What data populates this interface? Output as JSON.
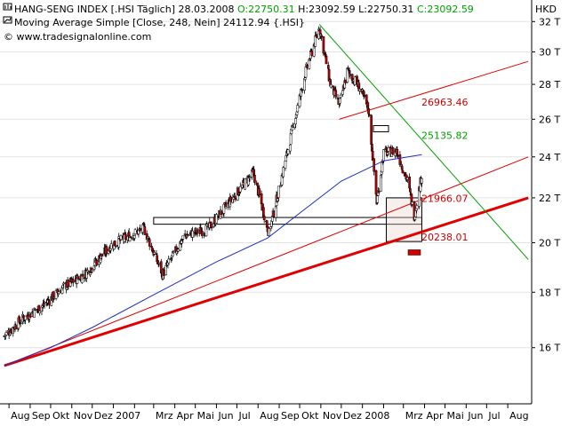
{
  "header": {
    "line1_prefix": "HANG-SENG INDEX [.HSI  Täglich] 28.03.2008 ",
    "open": "O:22750.31",
    "high": "H:23092.59",
    "low": "L:22750.31",
    "close": "C:23092.59",
    "line2_prefix": "Moving Average Simple [Close, 248, Nein] ",
    "ma_value": "24112.94",
    "line2_suffix": " {.HSI}",
    "line3": "© www.tradesignalonline.com",
    "currency": "HKD"
  },
  "colors": {
    "candle_up": "#ffffff",
    "candle_down": "#c00000",
    "moving_average": "#1f2fbf",
    "trend_red": "#e00000",
    "trend_green": "#00a000",
    "level_red": "#d00000",
    "level_green": "#00a000"
  },
  "chart_data": {
    "type": "candlestick",
    "title": "HANG-SENG INDEX [.HSI  Täglich] 28.03.2008",
    "ylabel": "HKD",
    "y_scale": "log",
    "y_range": [
      14200,
      33500
    ],
    "y_ticks": [
      {
        "label": "32 T",
        "value": 32000
      },
      {
        "label": "30 T",
        "value": 30000
      },
      {
        "label": "28 T",
        "value": 28000
      },
      {
        "label": "26 T",
        "value": 26000
      },
      {
        "label": "24 T",
        "value": 24000
      },
      {
        "label": "22 T",
        "value": 22000
      },
      {
        "label": "20 T",
        "value": 20000
      },
      {
        "label": "18 T",
        "value": 18000
      },
      {
        "label": "16 T",
        "value": 16000
      }
    ],
    "x_ticks": [
      "Aug",
      "Sep",
      "Okt",
      "Nov",
      "Dez 2007",
      "Mrz",
      "Apr",
      "Mai",
      "Jun",
      "Jul",
      "Aug",
      "Sep",
      "Okt",
      "Nov",
      "Dez 2008",
      "Mrz",
      "Apr",
      "Mai",
      "Jun",
      "Jul",
      "Aug"
    ],
    "price_path": [
      [
        "2006-07-25",
        16400
      ],
      [
        "2006-08-20",
        17000
      ],
      [
        "2006-09-20",
        17500
      ],
      [
        "2006-10-20",
        18200
      ],
      [
        "2006-11-20",
        18700
      ],
      [
        "2006-12-29",
        19900
      ],
      [
        "2007-02-15",
        20600
      ],
      [
        "2007-03-14",
        18700
      ],
      [
        "2007-04-15",
        20300
      ],
      [
        "2007-05-20",
        20600
      ],
      [
        "2007-06-20",
        21800
      ],
      [
        "2007-07-25",
        23200
      ],
      [
        "2007-08-17",
        20400
      ],
      [
        "2007-09-10",
        23800
      ],
      [
        "2007-10-10",
        28800
      ],
      [
        "2007-10-30",
        31600
      ],
      [
        "2007-11-15",
        28000
      ],
      [
        "2007-11-28",
        26800
      ],
      [
        "2007-12-10",
        28800
      ],
      [
        "2007-12-28",
        27800
      ],
      [
        "2008-01-10",
        26500
      ],
      [
        "2008-01-22",
        21800
      ],
      [
        "2008-02-01",
        24200
      ],
      [
        "2008-02-20",
        24300
      ],
      [
        "2008-03-07",
        22800
      ],
      [
        "2008-03-17",
        21200
      ],
      [
        "2008-03-28",
        23092.59
      ]
    ],
    "moving_average": {
      "name": "Moving Average Simple [Close, 248, Nein]",
      "last": 24112.94,
      "path": [
        [
          "2006-07-25",
          15400
        ],
        [
          "2006-10-01",
          16000
        ],
        [
          "2006-12-01",
          16700
        ],
        [
          "2007-03-01",
          17900
        ],
        [
          "2007-06-01",
          19200
        ],
        [
          "2007-08-15",
          20200
        ],
        [
          "2007-10-01",
          21300
        ],
        [
          "2007-12-01",
          22800
        ],
        [
          "2008-02-01",
          23800
        ],
        [
          "2008-03-28",
          24112.94
        ]
      ]
    },
    "levels": [
      {
        "label": "26963.46",
        "value": 26963.46,
        "color": "red"
      },
      {
        "label": "25135.82",
        "value": 25135.82,
        "color": "green"
      },
      {
        "label": "21966.07",
        "value": 21966.07,
        "color": "red"
      },
      {
        "label": "20238.01",
        "value": 20238.01,
        "color": "red"
      }
    ],
    "trendlines": [
      {
        "color": "red",
        "width": 3,
        "from": [
          "2006-07-25",
          15400
        ],
        "to": [
          "2008-08-31",
          22000
        ]
      },
      {
        "color": "red",
        "width": 1,
        "from": [
          "2006-07-25",
          15400
        ],
        "to": [
          "2008-08-31",
          24000
        ]
      },
      {
        "color": "red",
        "width": 1,
        "from": [
          "2007-11-28",
          26000
        ],
        "to": [
          "2008-08-31",
          29400
        ]
      },
      {
        "color": "green",
        "width": 1,
        "from": [
          "2007-10-30",
          31800
        ],
        "to": [
          "2008-08-31",
          19300
        ]
      }
    ],
    "boxes": [
      {
        "from": [
          "2007-03-01",
          21100
        ],
        "to": [
          "2008-03-28",
          20800
        ]
      },
      {
        "from": [
          "2008-02-05",
          22000
        ],
        "to": [
          "2008-03-28",
          20050
        ]
      }
    ]
  }
}
